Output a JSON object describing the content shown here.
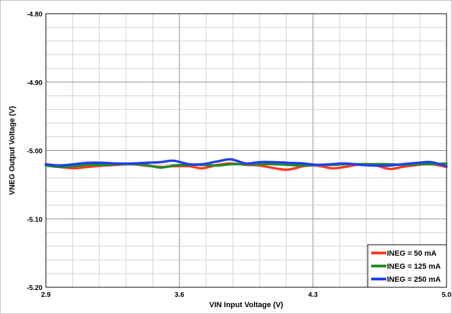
{
  "chart_data": {
    "type": "line",
    "title": "",
    "xlabel": "VIN Input Voltage (V)",
    "ylabel": "VNEG Output Voltage (V)",
    "xlim": [
      2.9,
      5.0
    ],
    "ylim": [
      -5.2,
      -4.8
    ],
    "x_ticks": [
      2.9,
      3.6,
      4.3,
      5.0
    ],
    "x_tick_labels": [
      "2.9",
      "3.6",
      "4.3",
      "5.0"
    ],
    "y_ticks": [
      -4.8,
      -4.9,
      -5.0,
      -5.1,
      -5.2
    ],
    "y_tick_labels": [
      "-4.80",
      "-4.90",
      "-5.00",
      "-5.10",
      "-5.20"
    ],
    "grid": true,
    "legend_position": "bottom-right",
    "series": [
      {
        "name": "INEG = 50 mA",
        "color": "#ff3b1f",
        "x": [
          2.9,
          2.97,
          3.05,
          3.12,
          3.2,
          3.27,
          3.35,
          3.42,
          3.5,
          3.57,
          3.65,
          3.72,
          3.8,
          3.87,
          3.95,
          4.02,
          4.1,
          4.17,
          4.25,
          4.32,
          4.4,
          4.47,
          4.55,
          4.62,
          4.7,
          4.77,
          4.85,
          4.92,
          5.0
        ],
        "y": [
          -5.02,
          -5.024,
          -5.026,
          -5.024,
          -5.022,
          -5.021,
          -5.02,
          -5.022,
          -5.024,
          -5.023,
          -5.023,
          -5.026,
          -5.021,
          -5.019,
          -5.021,
          -5.022,
          -5.026,
          -5.028,
          -5.023,
          -5.022,
          -5.026,
          -5.024,
          -5.02,
          -5.021,
          -5.027,
          -5.024,
          -5.021,
          -5.02,
          -5.024
        ]
      },
      {
        "name": "INEG = 125 mA",
        "color": "#1f8b24",
        "x": [
          2.9,
          2.97,
          3.05,
          3.12,
          3.2,
          3.27,
          3.35,
          3.42,
          3.5,
          3.57,
          3.65,
          3.72,
          3.8,
          3.87,
          3.95,
          4.02,
          4.1,
          4.17,
          4.25,
          4.32,
          4.4,
          4.47,
          4.55,
          4.62,
          4.7,
          4.77,
          4.85,
          4.92,
          5.0
        ],
        "y": [
          -5.022,
          -5.024,
          -5.023,
          -5.021,
          -5.021,
          -5.02,
          -5.02,
          -5.021,
          -5.025,
          -5.022,
          -5.021,
          -5.021,
          -5.022,
          -5.02,
          -5.02,
          -5.02,
          -5.02,
          -5.021,
          -5.022,
          -5.021,
          -5.021,
          -5.02,
          -5.02,
          -5.02,
          -5.02,
          -5.021,
          -5.02,
          -5.02,
          -5.019
        ]
      },
      {
        "name": "INEG = 250 mA",
        "color": "#1f3ff0",
        "x": [
          2.9,
          2.97,
          3.05,
          3.12,
          3.2,
          3.27,
          3.35,
          3.42,
          3.5,
          3.57,
          3.65,
          3.72,
          3.8,
          3.87,
          3.95,
          4.02,
          4.1,
          4.17,
          4.25,
          4.32,
          4.4,
          4.47,
          4.55,
          4.62,
          4.7,
          4.77,
          4.85,
          4.92,
          5.0
        ],
        "y": [
          -5.02,
          -5.022,
          -5.02,
          -5.018,
          -5.018,
          -5.019,
          -5.019,
          -5.018,
          -5.017,
          -5.015,
          -5.02,
          -5.02,
          -5.016,
          -5.013,
          -5.019,
          -5.017,
          -5.017,
          -5.018,
          -5.019,
          -5.021,
          -5.02,
          -5.019,
          -5.021,
          -5.022,
          -5.022,
          -5.02,
          -5.018,
          -5.017,
          -5.023
        ]
      }
    ]
  }
}
